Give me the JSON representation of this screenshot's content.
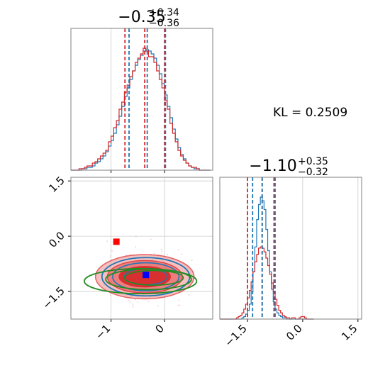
{
  "chart_data": {
    "type": "corner",
    "parameters": [
      {
        "title_value": "−0.35",
        "title_plus": "+0.34",
        "title_minus": "−0.36",
        "range": [
          -1.75,
          0.9
        ],
        "ticks": [
          {
            "v": -1,
            "label": "−1"
          },
          {
            "v": 0,
            "label": "0"
          }
        ]
      },
      {
        "title_value": "−1.10",
        "title_plus": "+0.35",
        "title_minus": "−0.32",
        "range": [
          -2.25,
          1.6
        ],
        "ticks": [
          {
            "v": -1.5,
            "label": "−1.5"
          },
          {
            "v": 0,
            "label": "0.0"
          },
          {
            "v": 1.5,
            "label": "1.5"
          }
        ]
      }
    ],
    "kl_label": "KL = 0.2509",
    "series_colors": {
      "blue": "#1f77b4",
      "red": "#d62728",
      "green": "#228b22"
    },
    "hist1": {
      "bins": [
        -1.75,
        -1.7,
        -1.65,
        -1.6,
        -1.55,
        -1.5,
        -1.45,
        -1.4,
        -1.35,
        -1.3,
        -1.25,
        -1.2,
        -1.15,
        -1.1,
        -1.05,
        -1.0,
        -0.95,
        -0.9,
        -0.85,
        -0.8,
        -0.75,
        -0.7,
        -0.65,
        -0.6,
        -0.55,
        -0.5,
        -0.45,
        -0.4,
        -0.35,
        -0.3,
        -0.25,
        -0.2,
        -0.15,
        -0.1,
        -0.05,
        0.0,
        0.05,
        0.1,
        0.15,
        0.2,
        0.25,
        0.3,
        0.35,
        0.4,
        0.45,
        0.5,
        0.55,
        0.6,
        0.65,
        0.7,
        0.75,
        0.8,
        0.85
      ],
      "blue": [
        0,
        0,
        0,
        0,
        1,
        1,
        2,
        2,
        3,
        5,
        6,
        8,
        10,
        13,
        17,
        21,
        26,
        32,
        38,
        45,
        52,
        58,
        64,
        70,
        74,
        78,
        81,
        84,
        85,
        84,
        82,
        79,
        74,
        68,
        61,
        53,
        45,
        37,
        29,
        22,
        16,
        11,
        8,
        5,
        3,
        2,
        1,
        1,
        0,
        0,
        0,
        0
      ],
      "red": [
        0,
        0,
        0,
        1,
        1,
        2,
        3,
        3,
        5,
        6,
        8,
        10,
        12,
        14,
        20,
        24,
        30,
        35,
        43,
        48,
        55,
        60,
        66,
        70,
        76,
        79,
        82,
        86,
        84,
        80,
        80,
        76,
        70,
        64,
        58,
        49,
        43,
        33,
        26,
        20,
        14,
        10,
        7,
        5,
        3,
        2,
        2,
        1,
        0,
        0,
        0,
        0
      ],
      "blue_lines": [
        -0.69,
        -0.35,
        -0.01
      ],
      "red_lines": [
        -0.74,
        -0.37,
        0.0
      ]
    },
    "hist2": {
      "bins": [
        -2.25,
        -2.2,
        -2.15,
        -2.1,
        -2.05,
        -2.0,
        -1.95,
        -1.9,
        -1.85,
        -1.8,
        -1.75,
        -1.7,
        -1.65,
        -1.6,
        -1.55,
        -1.5,
        -1.45,
        -1.4,
        -1.35,
        -1.3,
        -1.25,
        -1.2,
        -1.15,
        -1.1,
        -1.05,
        -1.0,
        -0.95,
        -0.9,
        -0.85,
        -0.8,
        -0.75,
        -0.7,
        -0.65,
        -0.6,
        -0.55,
        -0.5,
        -0.45,
        -0.4,
        -0.35,
        -0.3,
        -0.25,
        -0.2,
        -0.15,
        -0.1,
        -0.05,
        0.0,
        0.05,
        0.1,
        0.15,
        0.2,
        0.25,
        0.3
      ],
      "blue": [
        0,
        0,
        0,
        0,
        0,
        0,
        0,
        0,
        0,
        0,
        0,
        0,
        1,
        2,
        4,
        7,
        12,
        22,
        38,
        58,
        80,
        92,
        98,
        95,
        88,
        72,
        55,
        38,
        24,
        14,
        8,
        5,
        3,
        2,
        1,
        1,
        0,
        0,
        0,
        0,
        0,
        0,
        0,
        0,
        0,
        0,
        0,
        0,
        0,
        0,
        0
      ],
      "red": [
        0,
        0,
        0,
        0,
        0,
        0,
        0,
        0,
        0,
        1,
        2,
        3,
        5,
        8,
        12,
        17,
        23,
        30,
        38,
        46,
        52,
        57,
        58,
        57,
        54,
        49,
        43,
        36,
        29,
        22,
        16,
        11,
        7,
        5,
        3,
        2,
        1,
        1,
        0,
        1,
        1,
        0,
        0,
        1,
        2,
        2,
        1,
        0,
        0,
        0,
        0
      ],
      "blue_lines": [
        -1.36,
        -1.1,
        -0.78
      ],
      "red_lines": [
        -1.5,
        -1.1,
        -0.75
      ]
    },
    "scatter_markers": [
      {
        "x": -0.9,
        "y": -0.15,
        "color": "#ff0000"
      },
      {
        "x": -0.35,
        "y": -1.05,
        "color": "#0000ff"
      }
    ]
  }
}
